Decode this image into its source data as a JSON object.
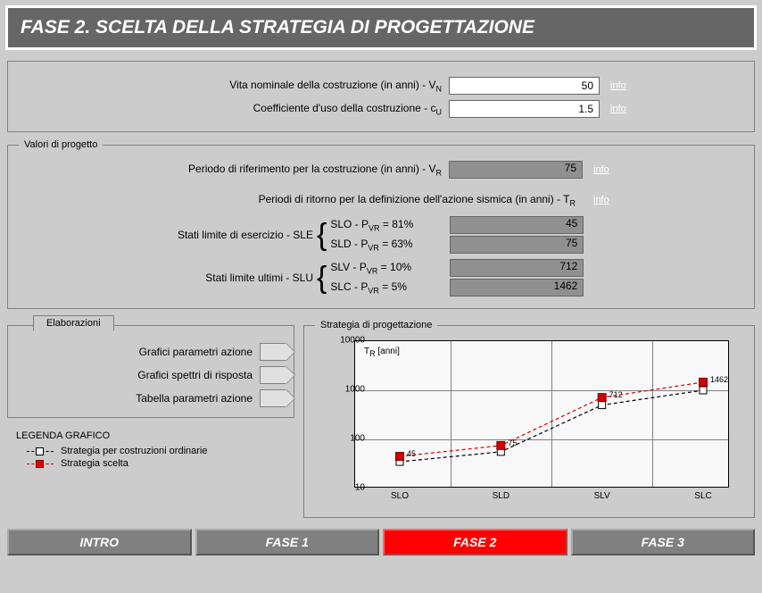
{
  "title": "FASE 2. SCELTA DELLA STRATEGIA DI PROGETTAZIONE",
  "inputs_group": {
    "vn_label": "Vita nominale della costruzione (in anni) - V",
    "vn_sub": "N",
    "vn_value": "50",
    "cu_label": "Coefficiente d'uso della costruzione - c",
    "cu_sub": "U",
    "cu_value": "1.5",
    "info": "info"
  },
  "progetto": {
    "group_title": "Valori di progetto",
    "vr_label": "Periodo di riferimento per la costruzione (in anni) - V",
    "vr_sub": "R",
    "vr_value": "75",
    "tr_label": "Periodi di ritorno per la definizione dell'azione sismica (in anni) - T",
    "tr_sub": "R",
    "sle_label": "Stati limite di esercizio - SLE",
    "slu_label": "Stati limite ultimi - SLU",
    "rows": {
      "slo": {
        "text": "SLO - P",
        "sub": "VR",
        "eq": " = 81%",
        "value": "45"
      },
      "sld": {
        "text": "SLD - P",
        "sub": "VR",
        "eq": " = 63%",
        "value": "75"
      },
      "slv": {
        "text": "SLV - P",
        "sub": "VR",
        "eq": " = 10%",
        "value": "712"
      },
      "slc": {
        "text": "SLC - P",
        "sub": "VR",
        "eq": " =   5%",
        "value": "1462"
      }
    },
    "info": "info"
  },
  "elab": {
    "title": "Elaborazioni",
    "items": [
      "Grafici parametri azione",
      "Grafici spettri di risposta",
      "Tabella parametri azione"
    ]
  },
  "legend": {
    "title": "LEGENDA GRAFICO",
    "ord": "Strategia per costruzioni ordinarie",
    "sel": "Strategia scelta"
  },
  "chart": {
    "title": "Strategia di progettazione",
    "axis_label": "T",
    "axis_sub": "R",
    "axis_unit": " [anni]",
    "type": "line",
    "ylog": true,
    "ylim": [
      10,
      10000
    ],
    "yticks": [
      10,
      100,
      1000,
      10000
    ],
    "xticks": [
      "SLO",
      "SLD",
      "SLV",
      "SLC"
    ],
    "background": "#f8f8f8",
    "grid_color": "#808080",
    "series": [
      {
        "name": "ordinarie",
        "color": "#000000",
        "dash": true,
        "marker": "white-square",
        "values": [
          35,
          56,
          500,
          1000
        ]
      },
      {
        "name": "scelta",
        "color": "#d00000",
        "dash": true,
        "marker": "red-square",
        "values": [
          45,
          75,
          712,
          1462
        ],
        "labels": [
          "45",
          "75",
          "712",
          "1462"
        ]
      }
    ]
  },
  "nav": {
    "intro": "INTRO",
    "f1": "FASE 1",
    "f2": "FASE 2",
    "f3": "FASE 3",
    "active": "f2"
  }
}
